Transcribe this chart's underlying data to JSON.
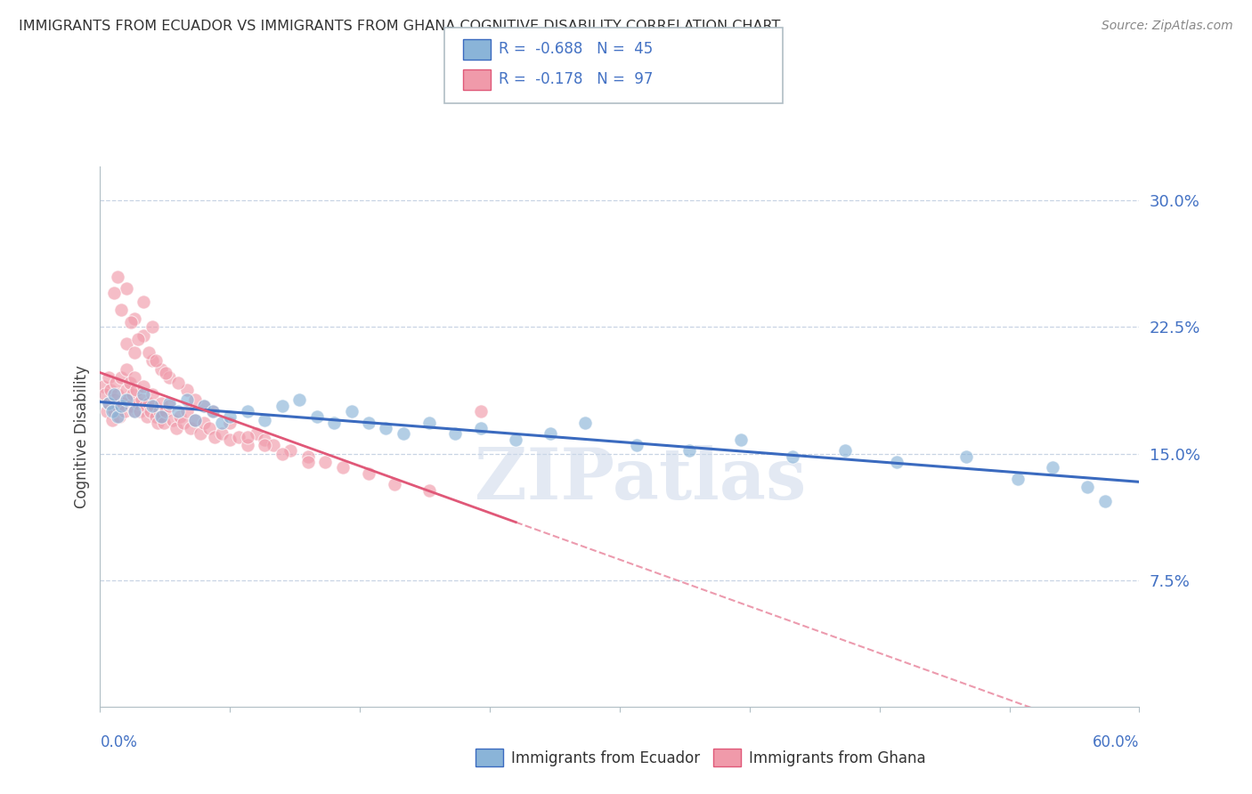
{
  "title": "IMMIGRANTS FROM ECUADOR VS IMMIGRANTS FROM GHANA COGNITIVE DISABILITY CORRELATION CHART",
  "source": "Source: ZipAtlas.com",
  "ylabel_label": "Cognitive Disability",
  "x_min": 0.0,
  "x_max": 0.6,
  "y_min": 0.0,
  "y_max": 0.32,
  "y_ticks": [
    0.075,
    0.15,
    0.225,
    0.3
  ],
  "y_tick_labels": [
    "7.5%",
    "15.0%",
    "22.5%",
    "30.0%"
  ],
  "ecuador_scatter_color": "#8ab4d8",
  "ghana_scatter_color": "#f09aaa",
  "ecuador_line_color": "#3a6abf",
  "ghana_line_color": "#e05878",
  "background_color": "#ffffff",
  "grid_color": "#c8d4e4",
  "axis_color": "#b0bec5",
  "watermark": "ZIPatlas",
  "ecuador_R": -0.688,
  "ecuador_N": 45,
  "ghana_R": -0.178,
  "ghana_N": 97,
  "ecuador_points_x": [
    0.005,
    0.007,
    0.008,
    0.01,
    0.012,
    0.015,
    0.02,
    0.025,
    0.03,
    0.035,
    0.04,
    0.045,
    0.05,
    0.055,
    0.06,
    0.065,
    0.07,
    0.075,
    0.085,
    0.095,
    0.105,
    0.115,
    0.125,
    0.135,
    0.145,
    0.155,
    0.165,
    0.175,
    0.19,
    0.205,
    0.22,
    0.24,
    0.26,
    0.28,
    0.31,
    0.34,
    0.37,
    0.4,
    0.43,
    0.46,
    0.5,
    0.53,
    0.55,
    0.57,
    0.58
  ],
  "ecuador_points_y": [
    0.18,
    0.175,
    0.185,
    0.172,
    0.178,
    0.182,
    0.175,
    0.185,
    0.178,
    0.172,
    0.18,
    0.175,
    0.182,
    0.17,
    0.178,
    0.175,
    0.168,
    0.172,
    0.175,
    0.17,
    0.178,
    0.182,
    0.172,
    0.168,
    0.175,
    0.168,
    0.165,
    0.162,
    0.168,
    0.162,
    0.165,
    0.158,
    0.162,
    0.168,
    0.155,
    0.152,
    0.158,
    0.148,
    0.152,
    0.145,
    0.148,
    0.135,
    0.142,
    0.13,
    0.122
  ],
  "ghana_points_x": [
    0.002,
    0.003,
    0.004,
    0.005,
    0.005,
    0.006,
    0.007,
    0.008,
    0.008,
    0.009,
    0.01,
    0.01,
    0.011,
    0.012,
    0.013,
    0.014,
    0.015,
    0.015,
    0.016,
    0.017,
    0.018,
    0.019,
    0.02,
    0.02,
    0.021,
    0.022,
    0.023,
    0.024,
    0.025,
    0.026,
    0.027,
    0.028,
    0.029,
    0.03,
    0.031,
    0.032,
    0.033,
    0.034,
    0.035,
    0.036,
    0.037,
    0.038,
    0.04,
    0.042,
    0.044,
    0.046,
    0.048,
    0.05,
    0.052,
    0.055,
    0.058,
    0.06,
    0.063,
    0.066,
    0.07,
    0.075,
    0.08,
    0.085,
    0.09,
    0.095,
    0.1,
    0.11,
    0.12,
    0.13,
    0.14,
    0.155,
    0.17,
    0.19,
    0.015,
    0.02,
    0.025,
    0.03,
    0.035,
    0.04,
    0.05,
    0.06,
    0.02,
    0.03,
    0.025,
    0.015,
    0.01,
    0.008,
    0.012,
    0.018,
    0.022,
    0.028,
    0.032,
    0.038,
    0.045,
    0.055,
    0.065,
    0.075,
    0.085,
    0.095,
    0.105,
    0.12,
    0.22
  ],
  "ghana_points_y": [
    0.19,
    0.185,
    0.175,
    0.18,
    0.195,
    0.188,
    0.17,
    0.182,
    0.175,
    0.192,
    0.178,
    0.185,
    0.172,
    0.195,
    0.18,
    0.175,
    0.2,
    0.188,
    0.182,
    0.192,
    0.178,
    0.185,
    0.195,
    0.175,
    0.188,
    0.18,
    0.175,
    0.182,
    0.19,
    0.178,
    0.172,
    0.18,
    0.175,
    0.185,
    0.178,
    0.172,
    0.168,
    0.175,
    0.18,
    0.172,
    0.168,
    0.175,
    0.178,
    0.17,
    0.165,
    0.172,
    0.168,
    0.175,
    0.165,
    0.17,
    0.162,
    0.168,
    0.165,
    0.16,
    0.162,
    0.158,
    0.16,
    0.155,
    0.162,
    0.158,
    0.155,
    0.152,
    0.148,
    0.145,
    0.142,
    0.138,
    0.132,
    0.128,
    0.215,
    0.21,
    0.22,
    0.205,
    0.2,
    0.195,
    0.188,
    0.178,
    0.23,
    0.225,
    0.24,
    0.248,
    0.255,
    0.245,
    0.235,
    0.228,
    0.218,
    0.21,
    0.205,
    0.198,
    0.192,
    0.182,
    0.175,
    0.168,
    0.16,
    0.155,
    0.15,
    0.145,
    0.175
  ]
}
